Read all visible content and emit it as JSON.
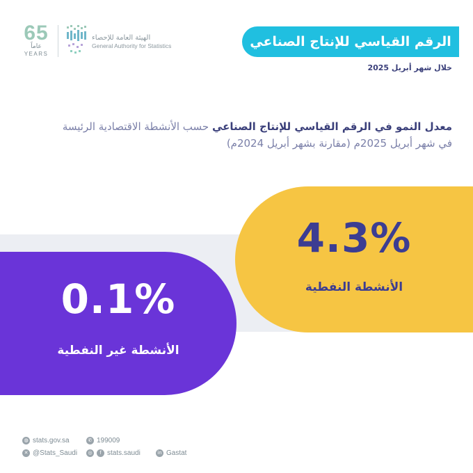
{
  "header": {
    "anniversary": {
      "number": "65",
      "arabic": "عاماً",
      "english": "YEARS"
    },
    "authority": {
      "arabic": "الهيئة العامة للإحصاء",
      "english": "General Authority for Statistics"
    },
    "title": "الرقم القياسي للإنتاج الصناعي",
    "period": "خلال شهر أبريل 2025"
  },
  "description": {
    "line1_bold": "معدل النمو في الرقم القياسي للإنتاج الصناعي",
    "line1_rest": "حسب الأنشطة الاقتصادية الرئيسة",
    "line2": "في شهر أبريل 2025م (مقارنة بشهر أبريل 2024م)"
  },
  "indicators": {
    "oil": {
      "value": "4.3%",
      "label": "الأنشطة النفطية",
      "color": "#f6c543"
    },
    "non_oil": {
      "value": "0.1%",
      "label": "الأنشطة غير النفطية",
      "color": "#6a34d8"
    }
  },
  "footer": {
    "website": "stats.gov.sa",
    "phone": "199009",
    "x_handle": "@Stats_Saudi",
    "social_handle": "stats.saudi",
    "linkedin": "Gastat"
  },
  "colors": {
    "banner": "#20bfe0",
    "text_dark": "#3a3f7a",
    "strip": "#eceef3"
  }
}
